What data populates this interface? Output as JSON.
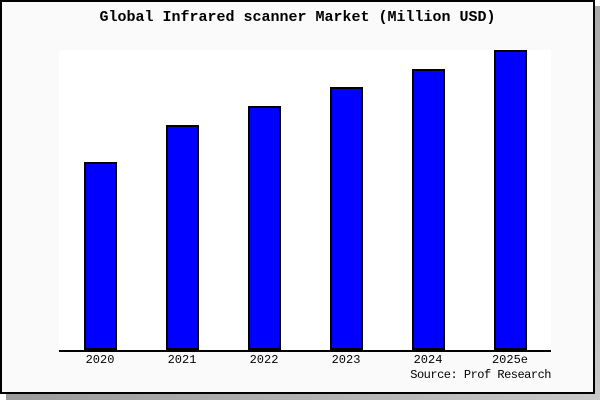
{
  "panel": {
    "background": "#fafafa",
    "border_color": "#000000",
    "shadow_color": "#8c8c8c",
    "plot_background": "#ffffff",
    "axis_color": "#000000",
    "text_color": "#000000"
  },
  "chart_data": {
    "type": "bar",
    "title": "Global Infrared scanner Market (Million USD)",
    "categories": [
      "2020",
      "2021",
      "2022",
      "2023",
      "2024",
      "2025e"
    ],
    "values": [
      62.7,
      75.0,
      81.3,
      87.7,
      93.7,
      100
    ],
    "values_note": "relative bar heights as percent of tallest bar; chart shows no numeric y-axis, gridlines or data labels",
    "xlabel": "",
    "ylabel": "",
    "ylim": [
      0,
      100
    ],
    "y_axis_visible": false,
    "gridlines": false,
    "legend": "none",
    "bar_color": "#0000ff",
    "bar_border_color": "#000000",
    "source_note": "Source: Prof Research"
  }
}
